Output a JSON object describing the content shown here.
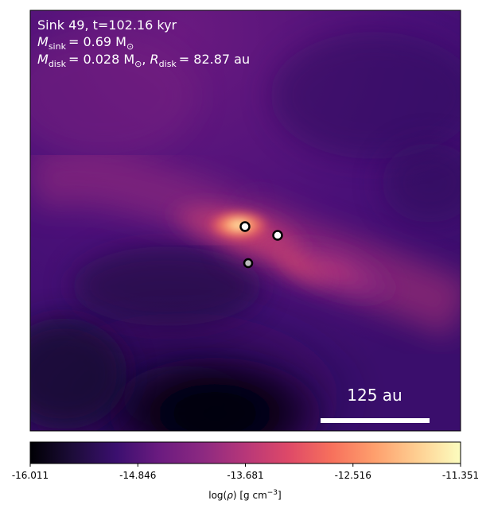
{
  "chart_data": {
    "type": "heatmap",
    "colormap": "plasma-like",
    "annotation": {
      "line1": "Sink 49, t=102.16 kyr",
      "line2_var": "M",
      "line2_sub": "sink",
      "line2_rest": "= 0.69 M",
      "line2_sun": "⊙",
      "line3_var": "M",
      "line3_sub": "disk",
      "line3_rest": "= 0.028 M",
      "line3_sun": "⊙",
      "line3_sep": ", ",
      "line3_var2": "R",
      "line3_sub2": "disk",
      "line3_rest2": "= 82.87 au"
    },
    "scalebar_label": "125 au",
    "colorbar": {
      "label": "log(ρ) [g cm⁻³]",
      "range": [
        -16.011,
        -11.351
      ],
      "tick_labels": [
        "-16.011",
        "-14.846",
        "-13.681",
        "-12.516",
        "-11.351"
      ]
    },
    "colors": {
      "stops": [
        "#000004",
        "#1d0c3a",
        "#3b0f6f",
        "#6b1b80",
        "#8c2981",
        "#b73779",
        "#de4968",
        "#f7705c",
        "#fe9f6d",
        "#fecf92",
        "#fcfdbf"
      ],
      "marker_edge": "#000000",
      "marker_primary_fill": "#ffffff",
      "marker_companion_fill": "#bbbbbb"
    }
  }
}
